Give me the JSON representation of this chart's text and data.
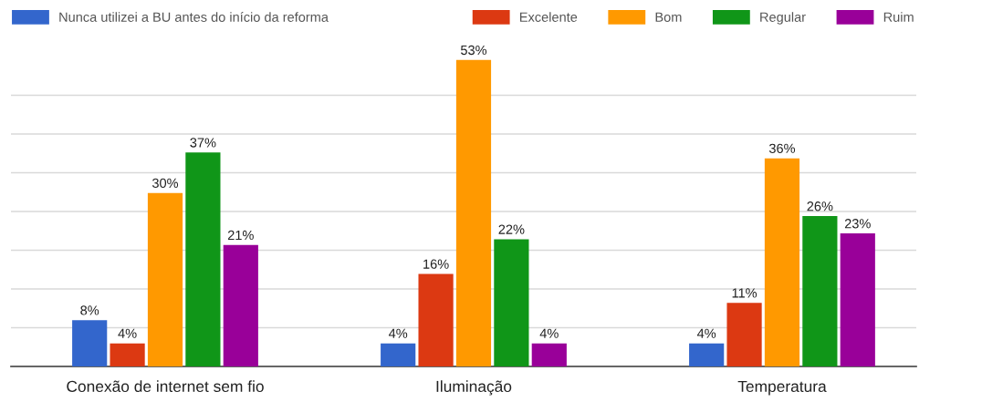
{
  "chart_data": {
    "type": "bar",
    "categories": [
      "Conexão de internet sem fio",
      "Iluminação",
      "Temperatura"
    ],
    "series": [
      {
        "name": "Nunca utilizei a BU antes do início da reforma",
        "color": "#3366cc",
        "values": [
          8,
          4,
          4
        ],
        "value_labels": [
          "8%",
          "4%",
          "4%"
        ]
      },
      {
        "name": "Excelente",
        "color": "#dc3912",
        "values": [
          4,
          16,
          11
        ],
        "value_labels": [
          "4%",
          "16%",
          "11%"
        ]
      },
      {
        "name": "Bom",
        "color": "#ff9900",
        "values": [
          30,
          53,
          36
        ],
        "value_labels": [
          "30%",
          "53%",
          "36%"
        ]
      },
      {
        "name": "Regular",
        "color": "#109618",
        "values": [
          37,
          22,
          26
        ],
        "value_labels": [
          "37%",
          "22%",
          "26%"
        ]
      },
      {
        "name": "Ruim",
        "color": "#990099",
        "values": [
          21,
          4,
          23
        ],
        "value_labels": [
          "21%",
          "4%",
          "23%"
        ]
      }
    ],
    "yticks": [
      {
        "value": 6.7,
        "label": null
      },
      {
        "value": 13.4,
        "label": null
      },
      {
        "value": 20.1,
        "label": null
      },
      {
        "value": 26.8,
        "label": null
      },
      {
        "value": 33.5,
        "label": null
      },
      {
        "value": 40.2,
        "label": null
      },
      {
        "value": 46.9,
        "label": null
      }
    ],
    "grid": "y",
    "legend": "top",
    "tick_labels": "x"
  }
}
